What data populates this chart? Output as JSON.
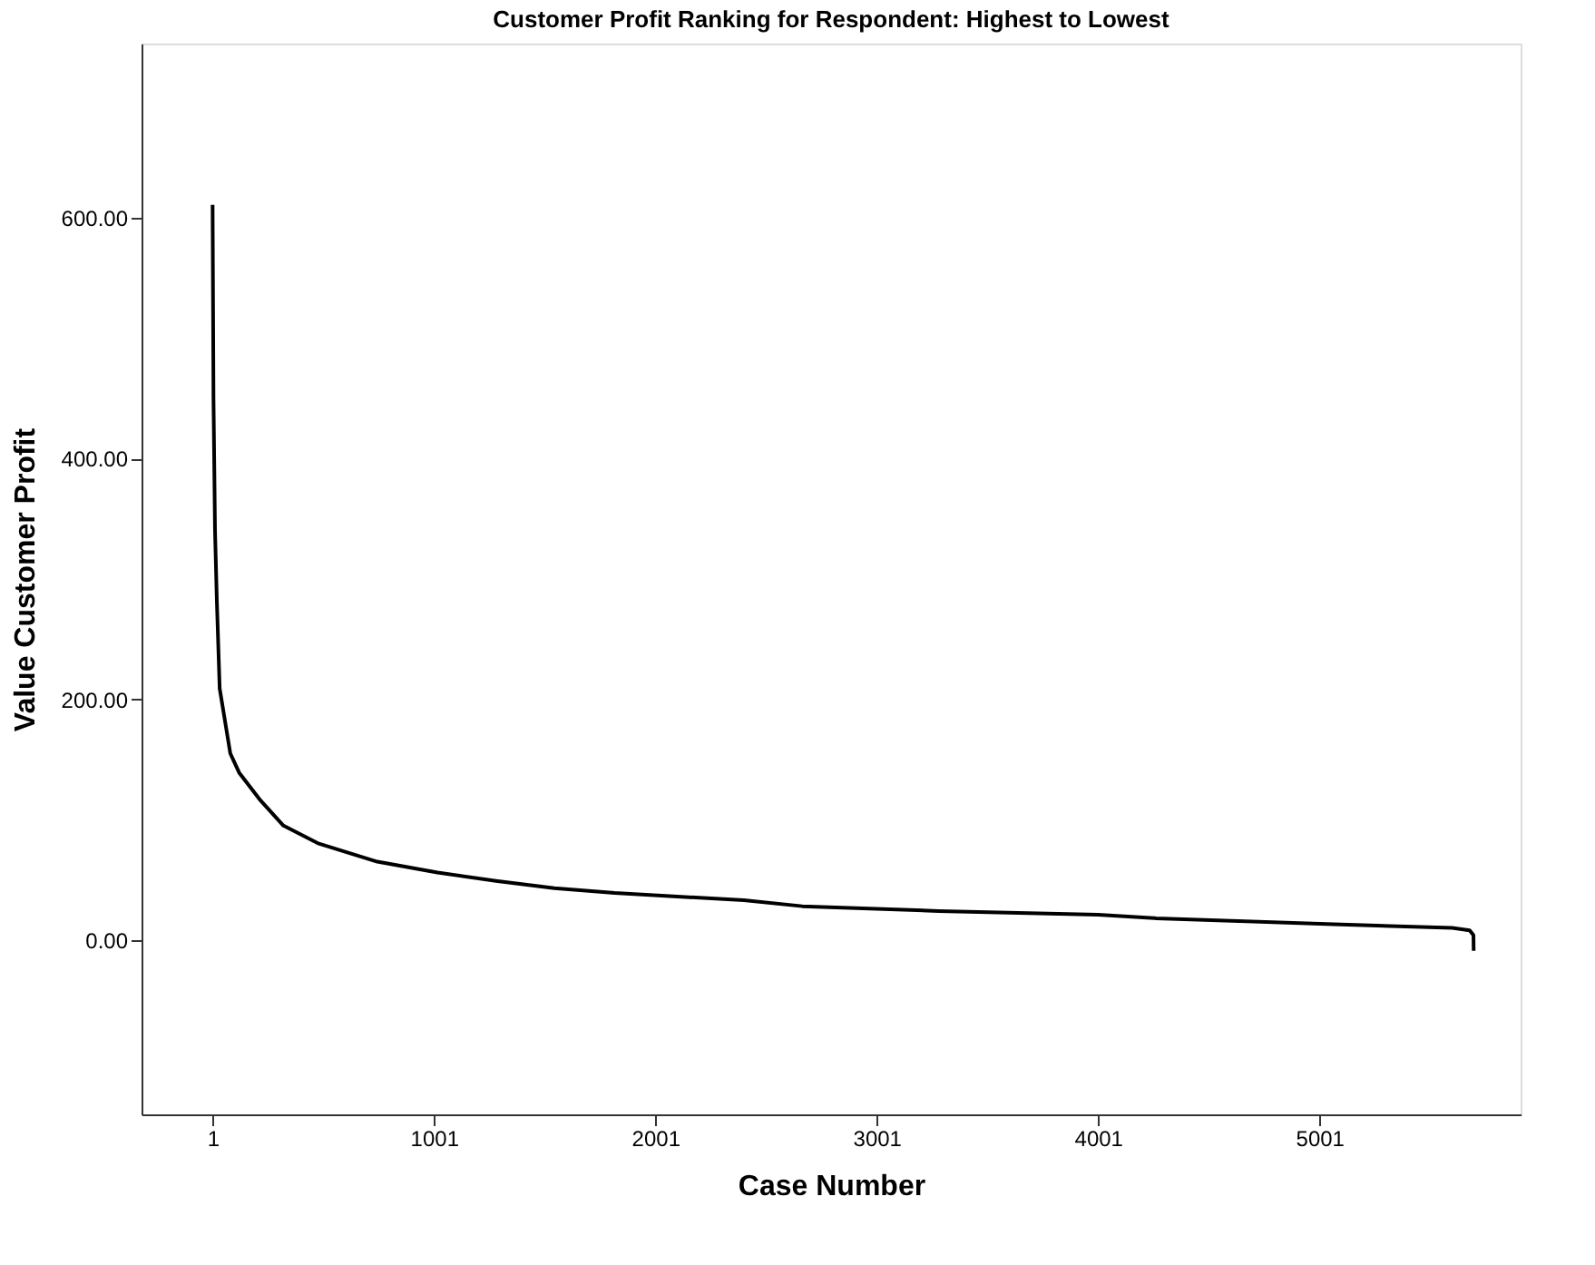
{
  "chart_data": {
    "type": "line",
    "title": "Customer Profit Ranking for Respondent: Highest to Lowest",
    "xlabel": "Case Number",
    "ylabel": "Value Customer Profit",
    "series": [
      {
        "color": "#000000",
        "x": [
          1,
          5,
          12,
          20,
          33,
          81,
          121,
          217,
          321,
          481,
          745,
          1017,
          1281,
          1545,
          1817,
          2401,
          2665,
          3281,
          4001,
          4265,
          5065,
          5601,
          5680,
          5697,
          5698
        ],
        "values": [
          611,
          450,
          340,
          283,
          209,
          155,
          139,
          116,
          95,
          80,
          65,
          56,
          49,
          43,
          39,
          33,
          28,
          24,
          21,
          18,
          13,
          10,
          8,
          4,
          -9
        ]
      }
    ],
    "xlim": [
      -320,
      5910
    ],
    "xticks": [
      1,
      1001,
      2001,
      3001,
      4001,
      5001
    ],
    "ylim": [
      -145,
      745
    ],
    "yticks": [
      {
        "value": 0,
        "label": "0.00"
      },
      {
        "value": 200,
        "label": "200.00"
      },
      {
        "value": 400,
        "label": "400.00"
      },
      {
        "value": 600,
        "label": "600.00"
      }
    ],
    "grid": false,
    "marker": "none",
    "line_style": "solid"
  }
}
